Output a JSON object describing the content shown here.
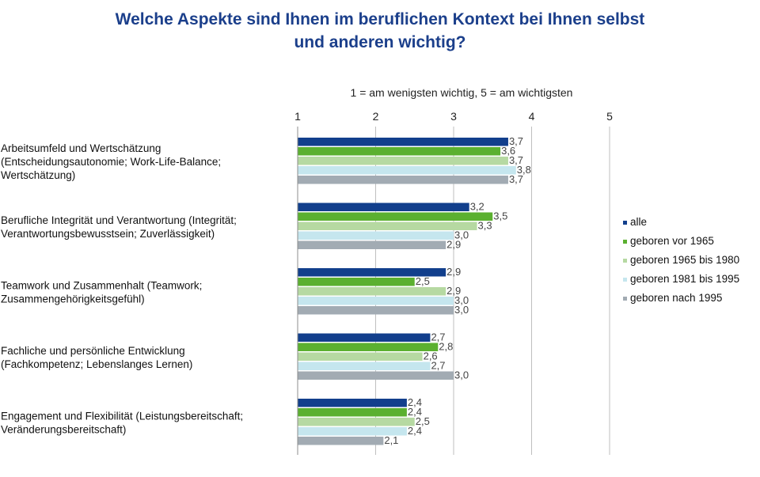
{
  "title": {
    "line1": "Welche Aspekte sind Ihnen im beruflichen Kontext bei Ihnen selbst",
    "line2": "und anderen wichtig?"
  },
  "chart_data": {
    "type": "bar",
    "orientation": "horizontal",
    "scale_note": "1 = am wenigsten wichtig, 5 = am wichtigsten",
    "xlim": [
      1,
      5
    ],
    "xticks": [
      "1",
      "2",
      "3",
      "4",
      "5"
    ],
    "grid": true,
    "legend_position": "right",
    "categories": [
      [
        "Arbeitsumfeld und Wertschätzung",
        "(Entscheidungsautonomie; Work-Life-Balance;",
        "Wertschätzung)"
      ],
      [
        "Berufliche Integrität und Verantwortung (Integrität;",
        "Verantwortungsbewusstsein; Zuverlässigkeit)"
      ],
      [
        "Teamwork und Zusammenhalt (Teamwork;",
        "Zusammengehörigkeitsgefühl)"
      ],
      [
        "Fachliche und persönliche Entwicklung",
        "(Fachkompetenz; Lebenslanges Lernen)"
      ],
      [
        "Engagement und Flexibilität (Leistungsbereitschaft;",
        "Veränderungsbereitschaft)"
      ]
    ],
    "series": [
      {
        "name": "alle",
        "color": "#123f8c",
        "values": [
          3.7,
          3.2,
          2.9,
          2.7,
          2.4
        ]
      },
      {
        "name": "geboren vor 1965",
        "color": "#5bb030",
        "values": [
          3.6,
          3.5,
          2.5,
          2.8,
          2.4
        ]
      },
      {
        "name": "geboren 1965 bis 1980",
        "color": "#b6d9a2",
        "values": [
          3.7,
          3.3,
          2.9,
          2.6,
          2.5
        ]
      },
      {
        "name": "geboren 1981 bis 1995",
        "color": "#c5e6ee",
        "values": [
          3.8,
          3.0,
          3.0,
          2.7,
          2.4
        ]
      },
      {
        "name": "geboren nach 1995",
        "color": "#a2abb3",
        "values": [
          3.7,
          2.9,
          3.0,
          3.0,
          2.1
        ]
      }
    ]
  }
}
